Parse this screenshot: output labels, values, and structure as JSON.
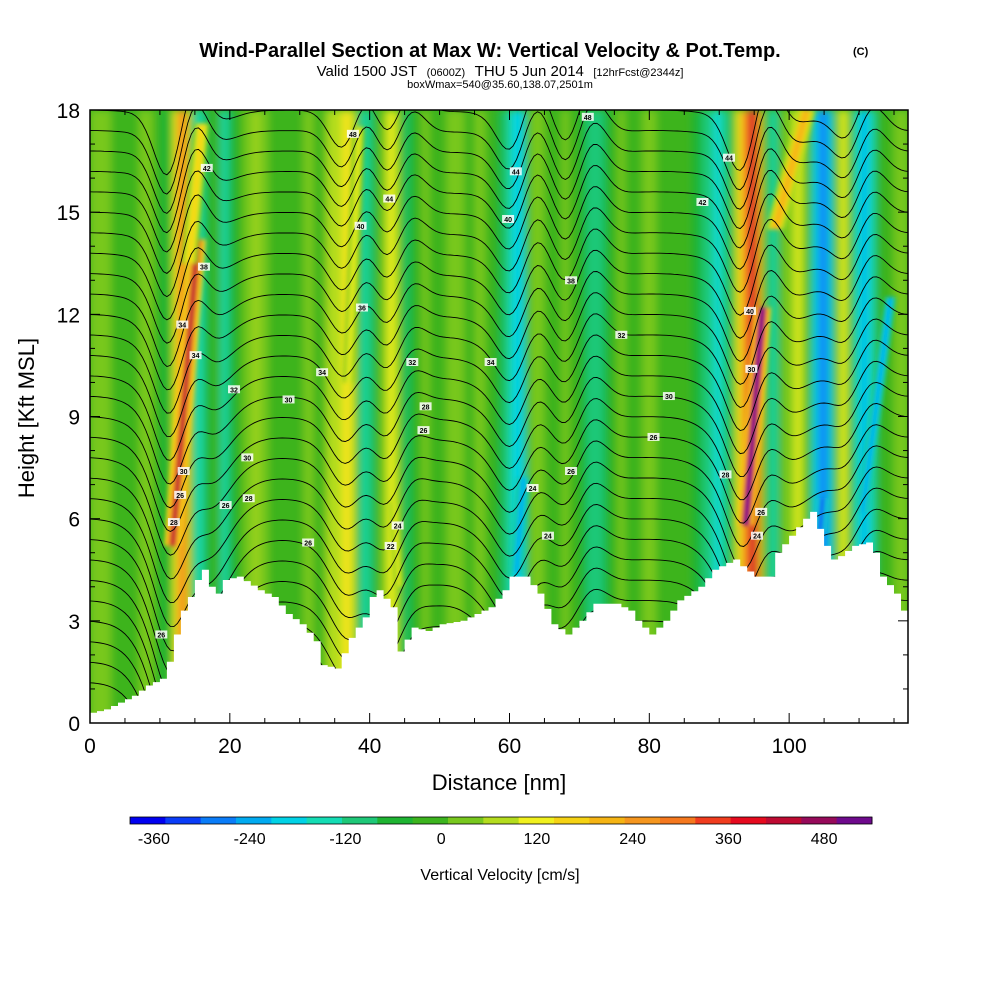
{
  "chart_data": {
    "type": "heatmap",
    "title": "Wind-Parallel Section at Max W: Vertical Velocity & Pot.Temp.",
    "title_mark": "(C)",
    "subtitle": {
      "valid_prefix": "Valid 1500 JST",
      "utc": "(0600Z)",
      "date": "THU 5 Jun 2014",
      "fcst": "[12hrFcst@2344z]"
    },
    "box_info": "boxWmax=540@35.60,138.07,2501m",
    "xlabel": "Distance [nm]",
    "ylabel": "Height [Kft MSL]",
    "xlim": [
      0,
      117
    ],
    "ylim": [
      0,
      18
    ],
    "x_ticks": [
      0,
      20,
      40,
      60,
      80,
      100
    ],
    "y_ticks": [
      0,
      3,
      6,
      9,
      12,
      15,
      18
    ],
    "colorbar": {
      "label": "Vertical Velocity [cm/s]",
      "ticks": [
        -360,
        -240,
        -120,
        0,
        120,
        240,
        360,
        480
      ],
      "range": [
        -390,
        540
      ],
      "colors": [
        "#0000f0",
        "#0a3cf8",
        "#0a7cf8",
        "#00aaf0",
        "#00d2e6",
        "#14dcb4",
        "#1ec878",
        "#1eb432",
        "#3cb41e",
        "#78c81e",
        "#b4dc1e",
        "#f0f01e",
        "#f5d214",
        "#f5b414",
        "#f5961e",
        "#f5781e",
        "#f03c1e",
        "#e60a1e",
        "#be0a32",
        "#960a5a",
        "#6e0a8c"
      ]
    },
    "terrain": [
      [
        0,
        0.3
      ],
      [
        2,
        0.4
      ],
      [
        4,
        0.6
      ],
      [
        6,
        0.8
      ],
      [
        8,
        1.1
      ],
      [
        10,
        1.3
      ],
      [
        11,
        1.8
      ],
      [
        12,
        2.6
      ],
      [
        13,
        3.3
      ],
      [
        14,
        3.7
      ],
      [
        15,
        4.2
      ],
      [
        16,
        4.5
      ],
      [
        17,
        4.0
      ],
      [
        18,
        3.8
      ],
      [
        19,
        4.2
      ],
      [
        21,
        4.3
      ],
      [
        24,
        3.9
      ],
      [
        26,
        3.7
      ],
      [
        28,
        3.2
      ],
      [
        30,
        2.9
      ],
      [
        32,
        2.4
      ],
      [
        33,
        1.7
      ],
      [
        35,
        1.6
      ],
      [
        37,
        2.5
      ],
      [
        39,
        3.1
      ],
      [
        40,
        3.7
      ],
      [
        41,
        3.9
      ],
      [
        43,
        3.4
      ],
      [
        44,
        2.1
      ],
      [
        46,
        2.8
      ],
      [
        48,
        2.7
      ],
      [
        50,
        2.9
      ],
      [
        53,
        3.0
      ],
      [
        55,
        3.2
      ],
      [
        57,
        3.4
      ],
      [
        59,
        3.9
      ],
      [
        60,
        4.3
      ],
      [
        62,
        4.3
      ],
      [
        64,
        3.8
      ],
      [
        66,
        2.9
      ],
      [
        68,
        2.6
      ],
      [
        70,
        3.0
      ],
      [
        72,
        3.5
      ],
      [
        75,
        3.5
      ],
      [
        77,
        3.3
      ],
      [
        78,
        3.0
      ],
      [
        80,
        2.6
      ],
      [
        82,
        3.0
      ],
      [
        84,
        3.6
      ],
      [
        87,
        4.0
      ],
      [
        89,
        4.5
      ],
      [
        92,
        4.8
      ],
      [
        93,
        4.6
      ],
      [
        95,
        4.3
      ],
      [
        97,
        4.3
      ],
      [
        98,
        5.0
      ],
      [
        100,
        5.5
      ],
      [
        102,
        6.0
      ],
      [
        103,
        6.2
      ],
      [
        105,
        5.2
      ],
      [
        106,
        4.8
      ],
      [
        107,
        4.9
      ],
      [
        109,
        5.2
      ],
      [
        111,
        5.3
      ],
      [
        112,
        5.0
      ],
      [
        113,
        4.3
      ],
      [
        115,
        3.8
      ],
      [
        116,
        3.3
      ],
      [
        117,
        3.2
      ]
    ],
    "velocity_columns": [
      [
        0,
        30
      ],
      [
        3,
        10
      ],
      [
        6,
        -20
      ],
      [
        8,
        40
      ],
      [
        10,
        -40
      ],
      [
        11,
        -80
      ],
      [
        12,
        60
      ],
      [
        13,
        330
      ],
      [
        14,
        160
      ],
      [
        15,
        -160
      ],
      [
        16,
        -120
      ],
      [
        17,
        -60
      ],
      [
        18,
        20
      ],
      [
        19,
        -140
      ],
      [
        20,
        -90
      ],
      [
        22,
        20
      ],
      [
        24,
        60
      ],
      [
        26,
        -20
      ],
      [
        28,
        10
      ],
      [
        30,
        -30
      ],
      [
        31,
        40
      ],
      [
        33,
        -40
      ],
      [
        34,
        50
      ],
      [
        36,
        90
      ],
      [
        37,
        160
      ],
      [
        38,
        60
      ],
      [
        39,
        -160
      ],
      [
        40,
        -110
      ],
      [
        41,
        -40
      ],
      [
        42,
        30
      ],
      [
        43,
        120
      ],
      [
        44,
        80
      ],
      [
        45,
        -120
      ],
      [
        46,
        -60
      ],
      [
        48,
        20
      ],
      [
        50,
        -20
      ],
      [
        52,
        40
      ],
      [
        54,
        -10
      ],
      [
        56,
        30
      ],
      [
        58,
        -30
      ],
      [
        60,
        -130
      ],
      [
        61,
        -230
      ],
      [
        62,
        -150
      ],
      [
        63,
        30
      ],
      [
        64,
        60
      ],
      [
        66,
        -40
      ],
      [
        68,
        20
      ],
      [
        70,
        -30
      ],
      [
        72,
        -120
      ],
      [
        74,
        -60
      ],
      [
        76,
        20
      ],
      [
        78,
        -20
      ],
      [
        80,
        30
      ],
      [
        82,
        -20
      ],
      [
        84,
        10
      ],
      [
        86,
        -40
      ],
      [
        88,
        -90
      ],
      [
        90,
        -180
      ],
      [
        92,
        -30
      ],
      [
        93,
        160
      ],
      [
        94,
        300
      ],
      [
        95,
        460
      ],
      [
        96,
        100
      ],
      [
        97,
        -90
      ],
      [
        98,
        -160
      ],
      [
        99,
        60
      ],
      [
        100,
        20
      ],
      [
        101,
        120
      ],
      [
        102,
        60
      ],
      [
        103,
        -60
      ],
      [
        104,
        -230
      ],
      [
        105,
        -310
      ],
      [
        106,
        -140
      ],
      [
        107,
        40
      ],
      [
        108,
        120
      ],
      [
        109,
        -60
      ],
      [
        110,
        -160
      ],
      [
        111,
        -240
      ],
      [
        112,
        -120
      ],
      [
        113,
        -30
      ],
      [
        115,
        10
      ],
      [
        117,
        30
      ]
    ],
    "hot_cores": [
      {
        "x0": 11.8,
        "y0": 5.2,
        "x1": 15.4,
        "y1": 14.2,
        "w": 420,
        "width": 2.4
      },
      {
        "x0": 14.2,
        "y0": 13.5,
        "x1": 16.0,
        "y1": 17.6,
        "w": 150,
        "width": 2.2
      },
      {
        "x0": 93.8,
        "y0": 5.8,
        "x1": 96.2,
        "y1": 12.2,
        "w": 500,
        "width": 2.4
      },
      {
        "x0": 98.0,
        "y0": 14.5,
        "x1": 102.5,
        "y1": 18.0,
        "w": 220,
        "width": 2.6
      },
      {
        "x0": 37.0,
        "y0": 10.0,
        "x1": 38.5,
        "y1": 17.5,
        "w": 110,
        "width": 1.6
      },
      {
        "x0": 43.5,
        "y0": 6.5,
        "x1": 44.2,
        "y1": 4.0,
        "w": 130,
        "width": 1.2
      },
      {
        "x0": 104.4,
        "y0": 5.6,
        "x1": 104.8,
        "y1": 6.6,
        "w": -320,
        "width": 1.6
      },
      {
        "x0": 61.0,
        "y0": 4.4,
        "x1": 62.0,
        "y1": 7.2,
        "w": -250,
        "width": 1.8
      },
      {
        "x0": 110.5,
        "y0": 6.2,
        "x1": 114.5,
        "y1": 12.5,
        "w": -250,
        "width": 1.6
      }
    ],
    "isentrope_labels": [
      {
        "x": 37.6,
        "y": 17.3,
        "text": "48"
      },
      {
        "x": 71.2,
        "y": 17.8,
        "text": "48"
      },
      {
        "x": 91.4,
        "y": 16.6,
        "text": "44"
      },
      {
        "x": 16.7,
        "y": 16.3,
        "text": "42"
      },
      {
        "x": 42.8,
        "y": 15.4,
        "text": "44"
      },
      {
        "x": 60.9,
        "y": 16.2,
        "text": "44"
      },
      {
        "x": 87.6,
        "y": 15.3,
        "text": "42"
      },
      {
        "x": 38.7,
        "y": 14.6,
        "text": "40"
      },
      {
        "x": 59.8,
        "y": 14.8,
        "text": "40"
      },
      {
        "x": 68.8,
        "y": 13.0,
        "text": "38"
      },
      {
        "x": 16.3,
        "y": 13.4,
        "text": "38"
      },
      {
        "x": 38.9,
        "y": 12.2,
        "text": "36"
      },
      {
        "x": 94.4,
        "y": 12.1,
        "text": "40"
      },
      {
        "x": 13.2,
        "y": 11.7,
        "text": "34"
      },
      {
        "x": 76.0,
        "y": 11.4,
        "text": "32"
      },
      {
        "x": 15.1,
        "y": 10.8,
        "text": "34"
      },
      {
        "x": 46.1,
        "y": 10.6,
        "text": "32"
      },
      {
        "x": 57.3,
        "y": 10.6,
        "text": "34"
      },
      {
        "x": 33.2,
        "y": 10.3,
        "text": "34"
      },
      {
        "x": 94.6,
        "y": 10.4,
        "text": "30"
      },
      {
        "x": 20.6,
        "y": 9.8,
        "text": "32"
      },
      {
        "x": 28.4,
        "y": 9.5,
        "text": "30"
      },
      {
        "x": 82.8,
        "y": 9.6,
        "text": "30"
      },
      {
        "x": 48.0,
        "y": 9.3,
        "text": "28"
      },
      {
        "x": 47.7,
        "y": 8.6,
        "text": "26"
      },
      {
        "x": 80.6,
        "y": 8.4,
        "text": "26"
      },
      {
        "x": 22.5,
        "y": 7.8,
        "text": "30"
      },
      {
        "x": 68.8,
        "y": 7.4,
        "text": "26"
      },
      {
        "x": 90.9,
        "y": 7.3,
        "text": "28"
      },
      {
        "x": 13.4,
        "y": 7.4,
        "text": "30"
      },
      {
        "x": 63.3,
        "y": 6.9,
        "text": "24"
      },
      {
        "x": 22.7,
        "y": 6.6,
        "text": "28"
      },
      {
        "x": 12.9,
        "y": 6.7,
        "text": "26"
      },
      {
        "x": 19.4,
        "y": 6.4,
        "text": "26"
      },
      {
        "x": 96.0,
        "y": 6.2,
        "text": "26"
      },
      {
        "x": 12.0,
        "y": 5.9,
        "text": "28"
      },
      {
        "x": 44.0,
        "y": 5.8,
        "text": "24"
      },
      {
        "x": 65.5,
        "y": 5.5,
        "text": "24"
      },
      {
        "x": 95.4,
        "y": 5.5,
        "text": "24"
      },
      {
        "x": 31.2,
        "y": 5.3,
        "text": "26"
      },
      {
        "x": 43.0,
        "y": 5.2,
        "text": "22"
      },
      {
        "x": 10.2,
        "y": 2.6,
        "text": "26"
      }
    ]
  }
}
